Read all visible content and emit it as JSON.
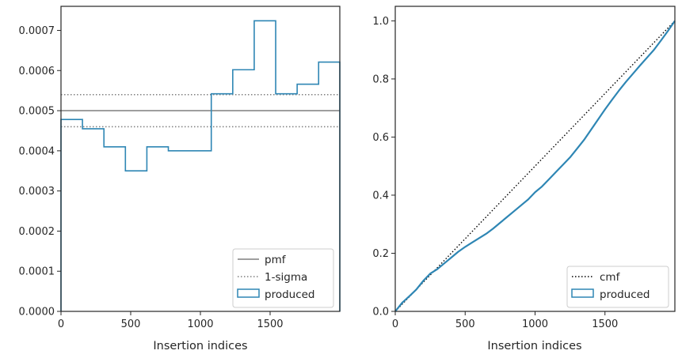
{
  "chart_data": [
    {
      "type": "line",
      "xlabel": "Insertion indices",
      "ylabel": "",
      "xlim": [
        0,
        2000
      ],
      "ylim": [
        0,
        0.00076
      ],
      "xticks": [
        0,
        500,
        1000,
        1500
      ],
      "xtick_labels": [
        "0",
        "500",
        "1000",
        "1500"
      ],
      "yticks": [
        0,
        0.0001,
        0.0002,
        0.0003,
        0.0004,
        0.0005,
        0.0006,
        0.0007
      ],
      "ytick_labels": [
        "0.0000",
        "0.0001",
        "0.0002",
        "0.0003",
        "0.0004",
        "0.0005",
        "0.0006",
        "0.0007"
      ],
      "grid": false,
      "legend_position": "lower-right",
      "colors": {
        "pmf": "#7f7f7f",
        "sigma": "#7f7f7f",
        "produced": "#2e86b4"
      },
      "series": [
        {
          "name": "pmf",
          "style": "solid",
          "x": [
            0,
            2000
          ],
          "y": [
            0.0005,
            0.0005
          ]
        },
        {
          "name": "1-sigma",
          "style": "dotted",
          "lines": [
            0.00054,
            0.00046
          ]
        },
        {
          "name": "produced",
          "style": "step",
          "bin_edges": [
            0,
            154,
            308,
            462,
            616,
            770,
            924,
            1078,
            1232,
            1386,
            1540,
            1694,
            1848,
            2000
          ],
          "values": [
            0.000478,
            0.000455,
            0.00041,
            0.00035,
            0.00041,
            0.0004,
            0.0004,
            0.000542,
            0.000602,
            0.000724,
            0.000542,
            0.000566,
            0.000621
          ]
        }
      ]
    },
    {
      "type": "line",
      "xlabel": "Insertion indices",
      "ylabel": "",
      "xlim": [
        0,
        2000
      ],
      "ylim": [
        0,
        1.05
      ],
      "xticks": [
        0,
        500,
        1000,
        1500
      ],
      "xtick_labels": [
        "0",
        "500",
        "1000",
        "1500"
      ],
      "yticks": [
        0,
        0.2,
        0.4,
        0.6,
        0.8,
        1.0
      ],
      "ytick_labels": [
        "0.0",
        "0.2",
        "0.4",
        "0.6",
        "0.8",
        "1.0"
      ],
      "grid": false,
      "legend_position": "lower-right",
      "colors": {
        "cmf": "#000000",
        "produced": "#2e86b4"
      },
      "series": [
        {
          "name": "cmf",
          "style": "dotted",
          "x": [
            0,
            2000
          ],
          "y": [
            0,
            1
          ]
        },
        {
          "name": "produced",
          "style": "step",
          "x": [
            0,
            50,
            100,
            150,
            200,
            250,
            300,
            350,
            400,
            450,
            500,
            550,
            600,
            650,
            700,
            750,
            800,
            850,
            900,
            950,
            1000,
            1050,
            1100,
            1150,
            1200,
            1250,
            1300,
            1350,
            1400,
            1450,
            1500,
            1550,
            1600,
            1650,
            1700,
            1750,
            1800,
            1850,
            1900,
            1950,
            2000
          ],
          "y": [
            0,
            0.03,
            0.052,
            0.075,
            0.105,
            0.13,
            0.145,
            0.165,
            0.185,
            0.205,
            0.222,
            0.237,
            0.252,
            0.267,
            0.285,
            0.305,
            0.325,
            0.345,
            0.365,
            0.385,
            0.41,
            0.43,
            0.455,
            0.48,
            0.505,
            0.53,
            0.56,
            0.59,
            0.625,
            0.66,
            0.695,
            0.728,
            0.76,
            0.79,
            0.818,
            0.846,
            0.873,
            0.9,
            0.932,
            0.965,
            1.0
          ]
        }
      ]
    }
  ]
}
